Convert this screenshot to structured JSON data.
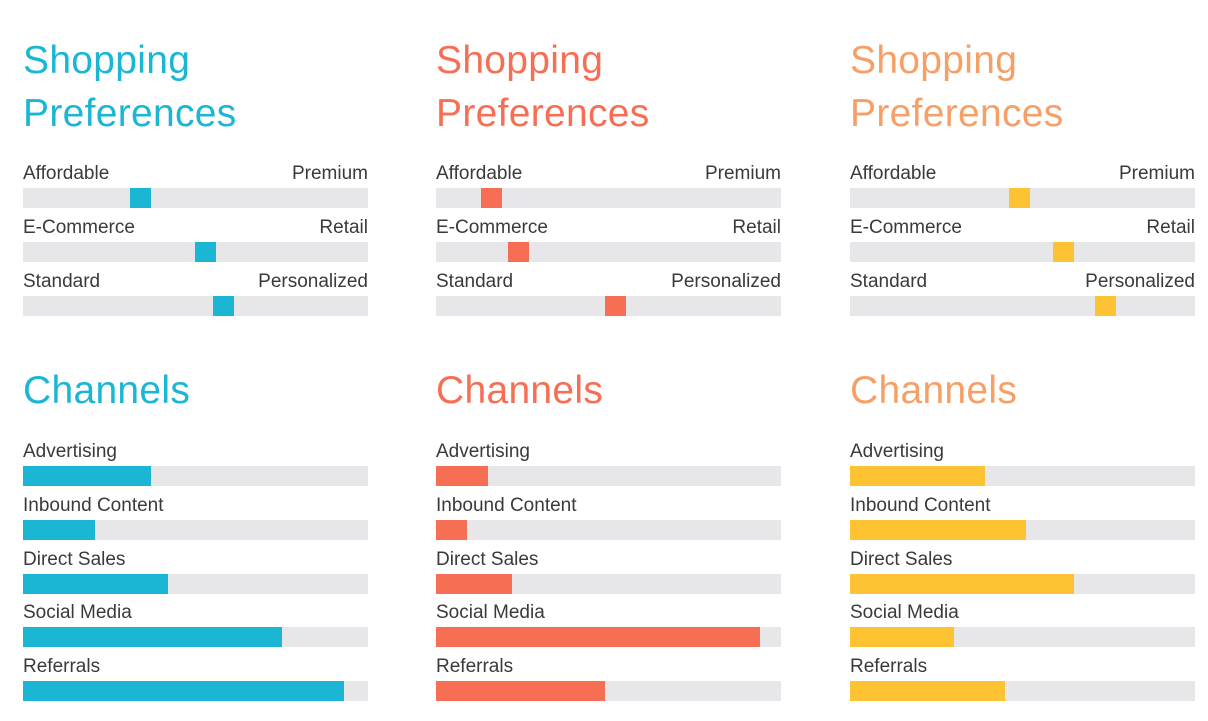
{
  "personas": [
    {
      "color": "#1ab6d4",
      "preferences_title": "Shopping\nPreferences",
      "channels_title": "Channels",
      "preferences": [
        {
          "left_label": "Affordable",
          "right_label": "Premium",
          "level": 0.34
        },
        {
          "left_label": "E-Commerce",
          "right_label": "Retail",
          "level": 0.53
        },
        {
          "left_label": "Standard",
          "right_label": "Personalized",
          "level": 0.58
        }
      ],
      "channels": [
        {
          "label": "Advertising",
          "level": 0.37
        },
        {
          "label": "Inbound Content",
          "level": 0.21
        },
        {
          "label": "Direct Sales",
          "level": 0.42
        },
        {
          "label": "Social Media",
          "level": 0.75
        },
        {
          "label": "Referrals",
          "level": 0.93
        }
      ]
    },
    {
      "color": "#f66f54",
      "preferences_title": "Shopping\nPreferences",
      "channels_title": "Channels",
      "preferences": [
        {
          "left_label": "Affordable",
          "right_label": "Premium",
          "level": 0.16
        },
        {
          "left_label": "E-Commerce",
          "right_label": "Retail",
          "level": 0.24
        },
        {
          "left_label": "Standard",
          "right_label": "Personalized",
          "level": 0.52
        }
      ],
      "channels": [
        {
          "label": "Advertising",
          "level": 0.15
        },
        {
          "label": "Inbound Content",
          "level": 0.09
        },
        {
          "label": "Direct Sales",
          "level": 0.22
        },
        {
          "label": "Social Media",
          "level": 0.94
        },
        {
          "label": "Referrals",
          "level": 0.49
        }
      ]
    },
    {
      "color": "#fdc332",
      "title_color": "#f6a068",
      "preferences_title": "Shopping\nPreferences",
      "channels_title": "Channels",
      "preferences": [
        {
          "left_label": "Affordable",
          "right_label": "Premium",
          "level": 0.49
        },
        {
          "left_label": "E-Commerce",
          "right_label": "Retail",
          "level": 0.62
        },
        {
          "left_label": "Standard",
          "right_label": "Personalized",
          "level": 0.74
        }
      ],
      "channels": [
        {
          "label": "Advertising",
          "level": 0.39
        },
        {
          "label": "Inbound Content",
          "level": 0.51
        },
        {
          "label": "Direct Sales",
          "level": 0.65
        },
        {
          "label": "Social Media",
          "level": 0.3
        },
        {
          "label": "Referrals",
          "level": 0.45
        }
      ]
    }
  ]
}
